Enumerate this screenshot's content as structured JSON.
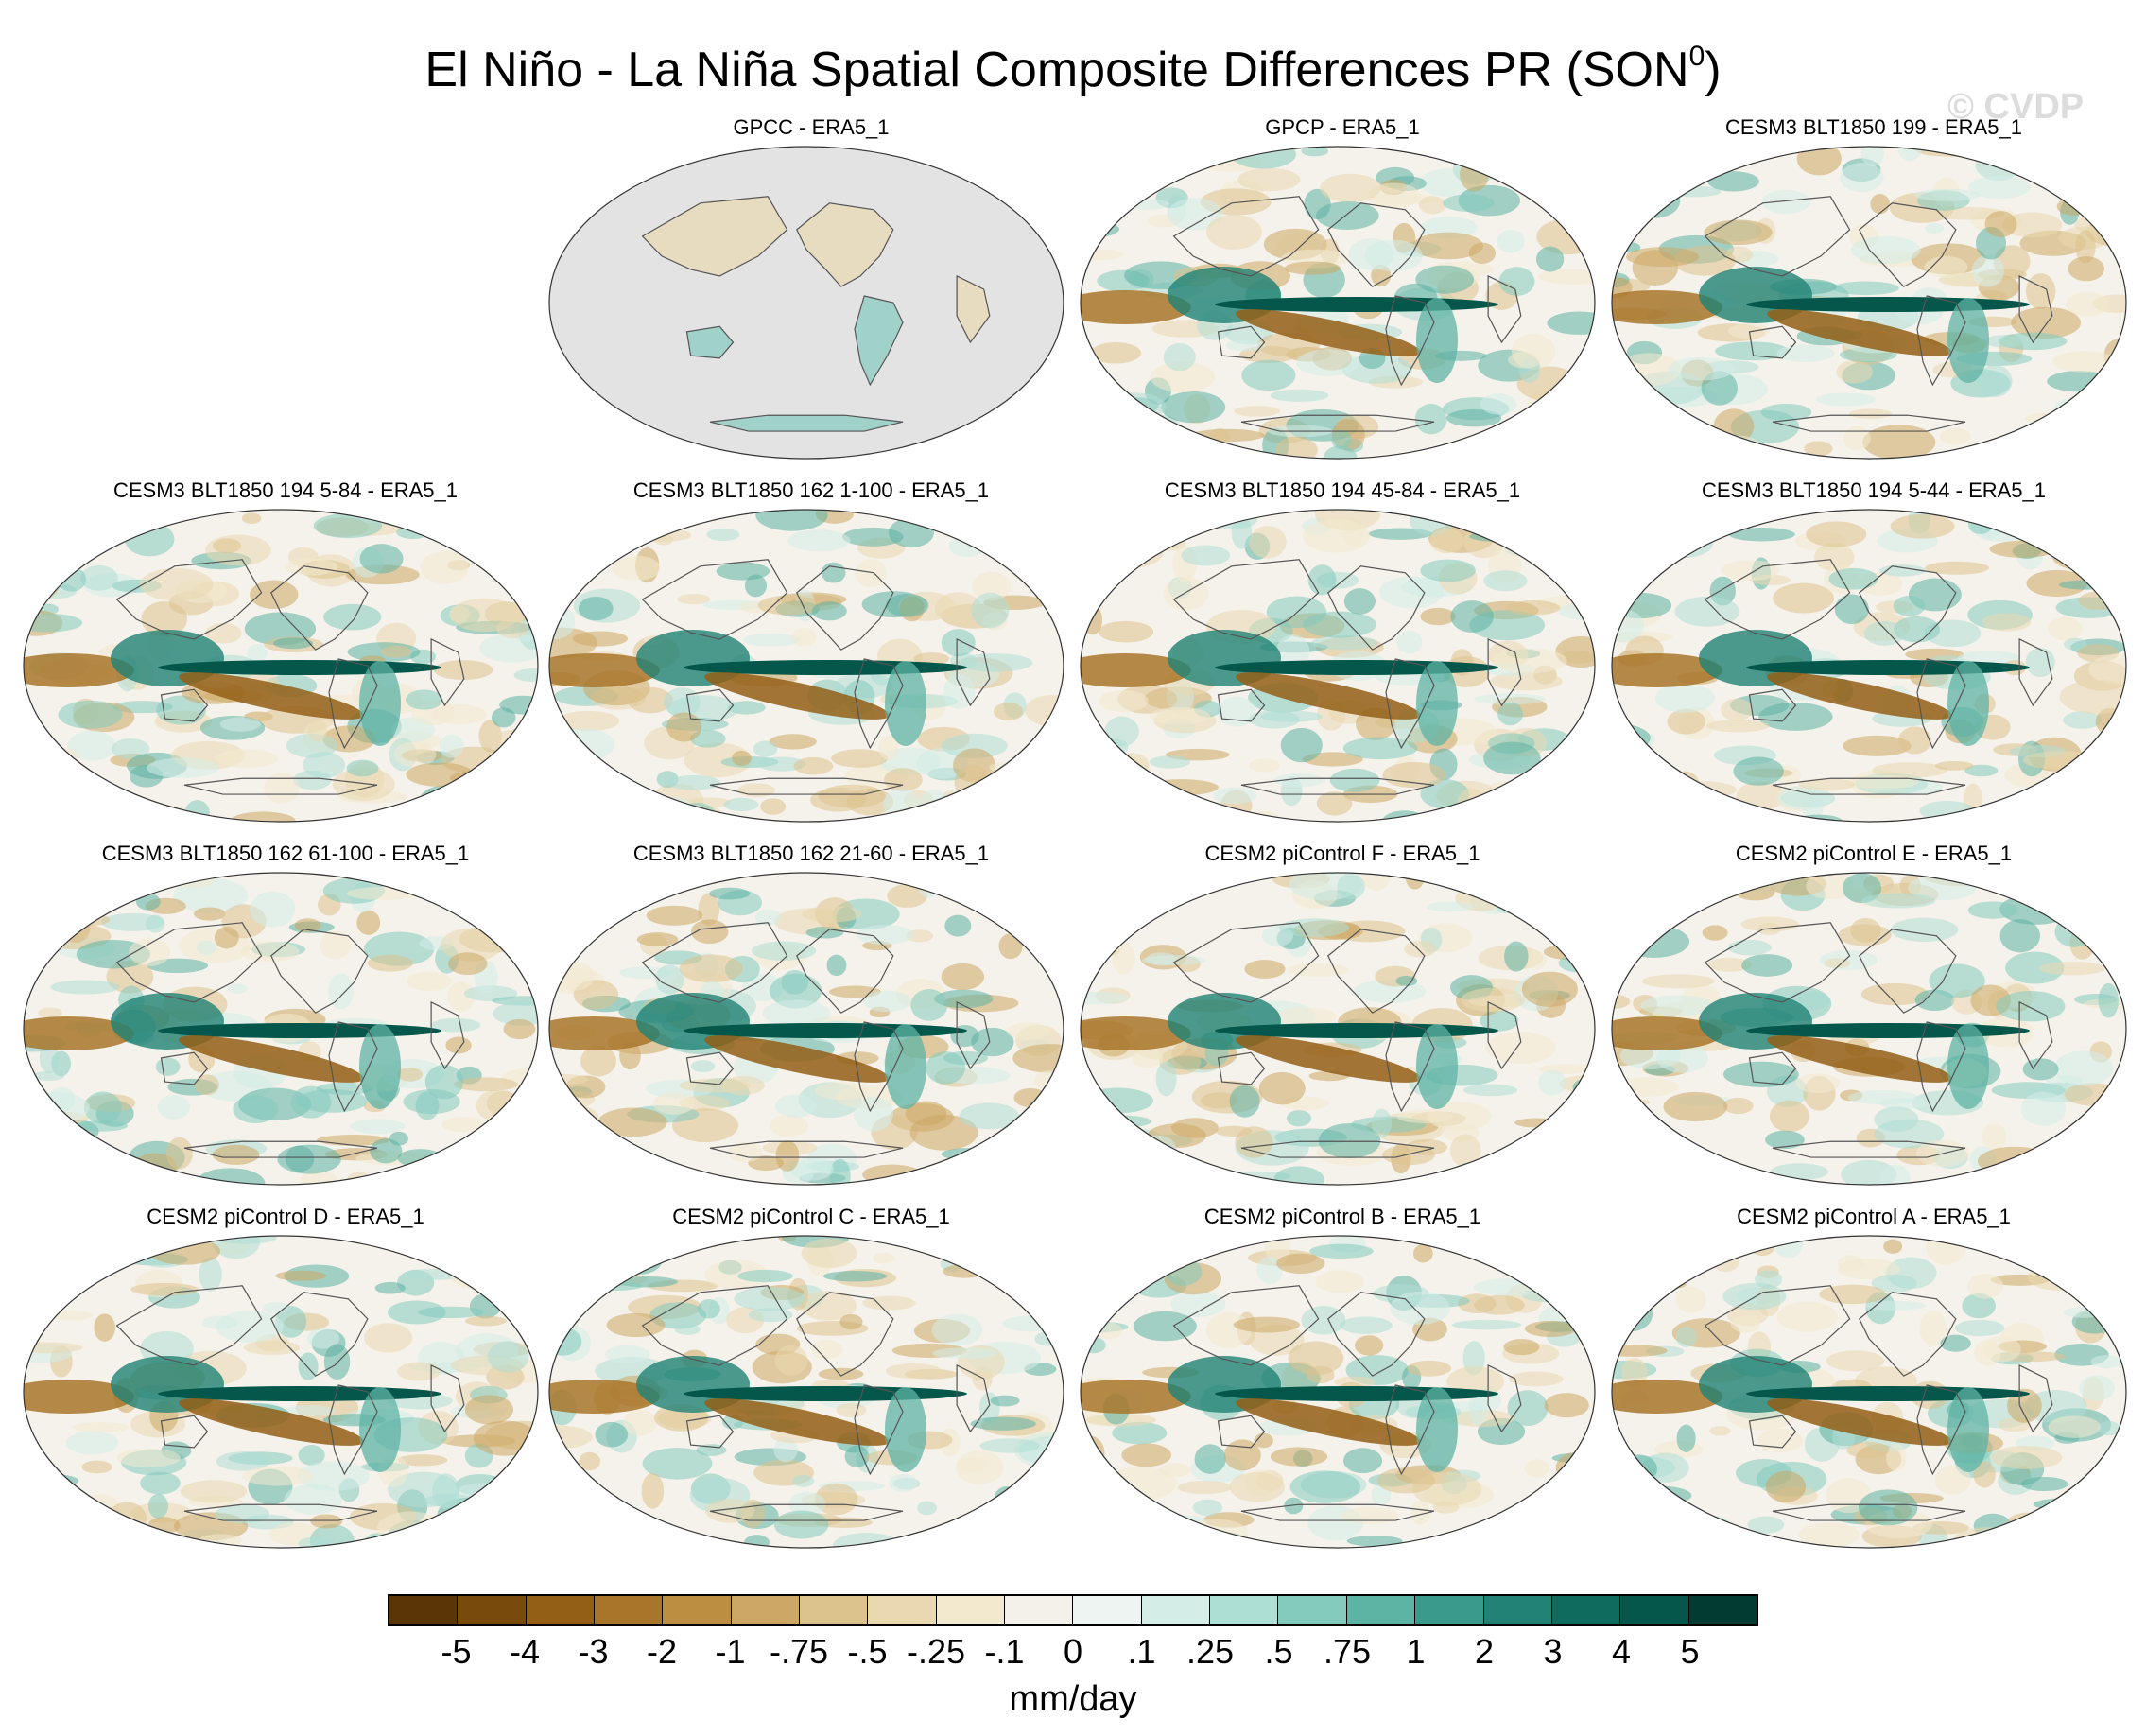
{
  "title_main": "El Niño - La Niña Spatial Composite Differences PR (SON",
  "title_sup": "0",
  "title_end": ")",
  "watermark": "© CVDP",
  "panels": [
    {
      "label": "GPCC - ERA5_1",
      "land_only": true
    },
    {
      "label": "GPCP - ERA5_1",
      "land_only": false
    },
    {
      "label": "CESM3 BLT1850 199 - ERA5_1",
      "land_only": false
    },
    {
      "label": "CESM3 BLT1850 194 5-84 - ERA5_1",
      "land_only": false
    },
    {
      "label": "CESM3 BLT1850 162 1-100 - ERA5_1",
      "land_only": false
    },
    {
      "label": "CESM3 BLT1850 194 45-84 - ERA5_1",
      "land_only": false
    },
    {
      "label": "CESM3 BLT1850 194 5-44 - ERA5_1",
      "land_only": false
    },
    {
      "label": "CESM3 BLT1850 162 61-100 - ERA5_1",
      "land_only": false
    },
    {
      "label": "CESM3 BLT1850 162 21-60 - ERA5_1",
      "land_only": false
    },
    {
      "label": "CESM2 piControl F - ERA5_1",
      "land_only": false
    },
    {
      "label": "CESM2 piControl E - ERA5_1",
      "land_only": false
    },
    {
      "label": "CESM2 piControl D - ERA5_1",
      "land_only": false
    },
    {
      "label": "CESM2 piControl C - ERA5_1",
      "land_only": false
    },
    {
      "label": "CESM2 piControl B - ERA5_1",
      "land_only": false
    },
    {
      "label": "CESM2 piControl A - ERA5_1",
      "land_only": false
    }
  ],
  "colorbar": {
    "colors": [
      "#5a3505",
      "#784a0c",
      "#935f16",
      "#a8762a",
      "#bb8e42",
      "#cca765",
      "#dcc38e",
      "#ead8b0",
      "#f3e9cf",
      "#f4f1ea",
      "#eef4f2",
      "#d4ede7",
      "#aedfd5",
      "#84cbbd",
      "#5db3a4",
      "#3a9b8c",
      "#218275",
      "#0f6b5e",
      "#04574a",
      "#013b32"
    ],
    "ticks": [
      "-5",
      "-4",
      "-3",
      "-2",
      "-1",
      "-.75",
      "-.5",
      "-.25",
      "-.1",
      "0",
      ".1",
      ".25",
      ".5",
      ".75",
      "1",
      "2",
      "3",
      "4",
      "5"
    ],
    "unit": "mm/day"
  }
}
